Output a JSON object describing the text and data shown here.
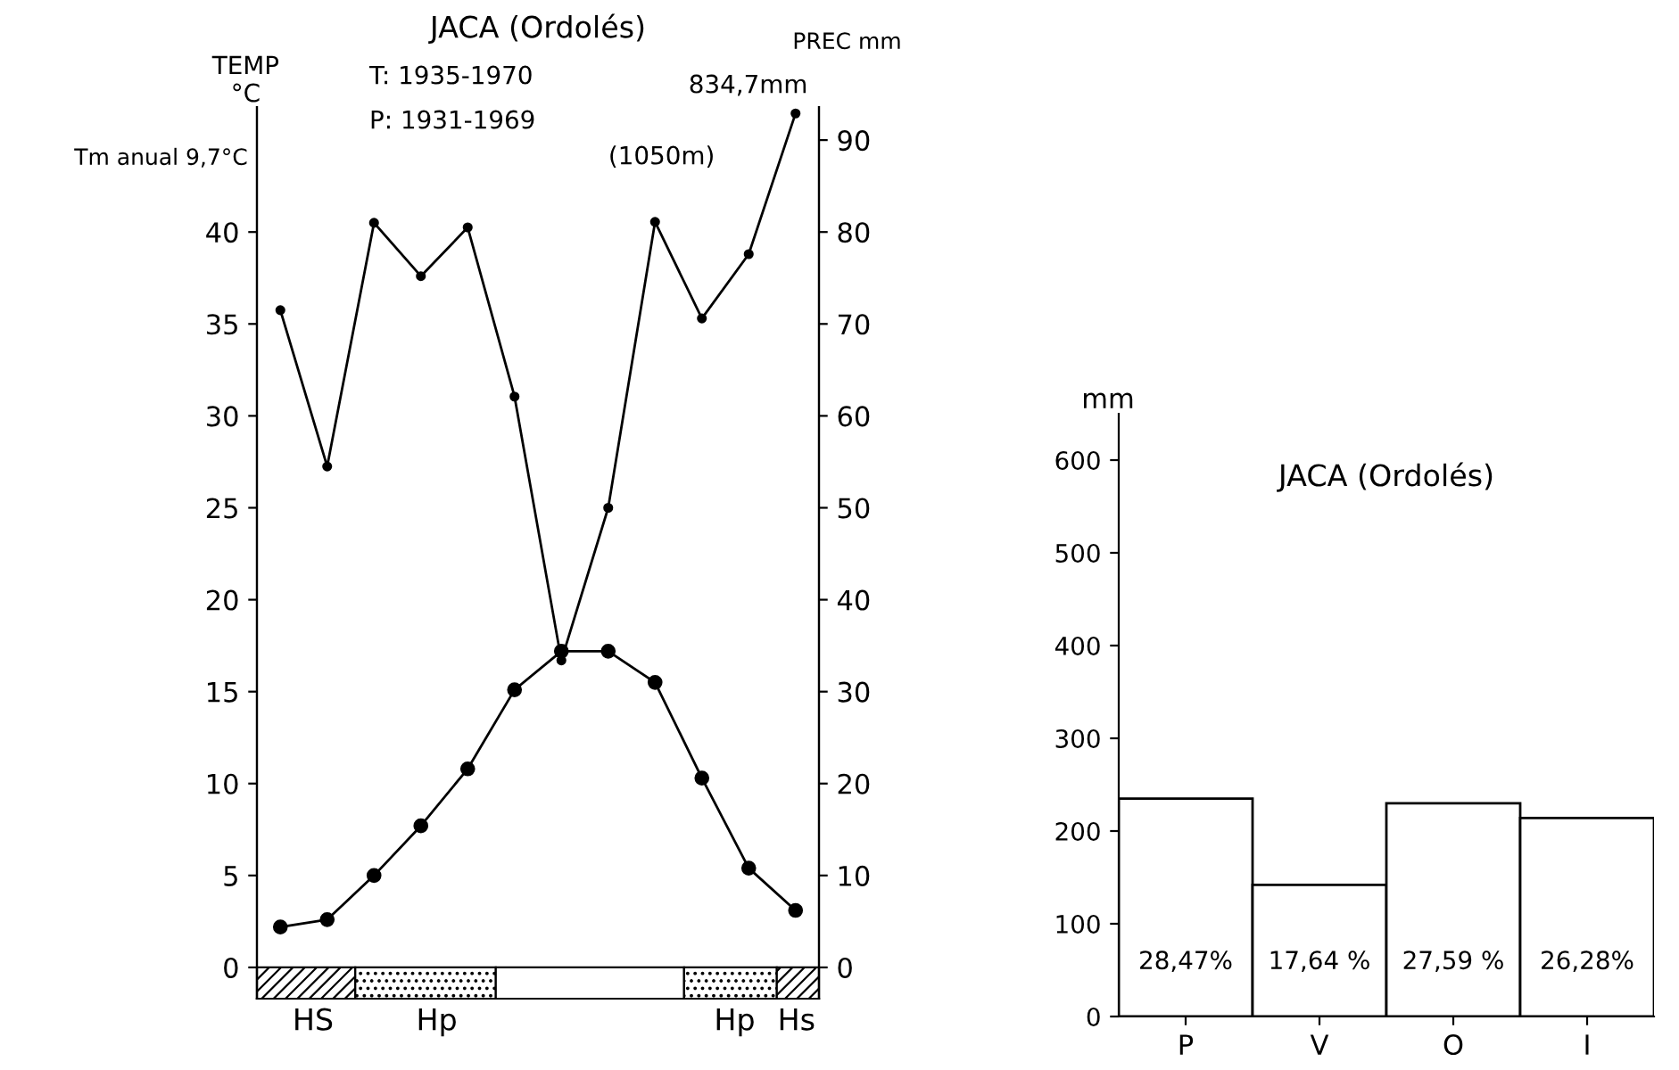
{
  "chart_data": [
    {
      "type": "line",
      "title": "JACA (Ordolés)",
      "ylabel": "TEMP\n°C",
      "y2label": "PREC mm",
      "categories": [
        null,
        null,
        null,
        null,
        null,
        null,
        null,
        null,
        null,
        null,
        null,
        null
      ],
      "series": [
        {
          "color": "#000000",
          "values": [
            2.2,
            2.6,
            5.0,
            7.7,
            10.8,
            15.1,
            17.2,
            17.2,
            15.5,
            10.3,
            5.4,
            3.1
          ]
        },
        {
          "color": "#000000",
          "axis": "y2",
          "values": [
            71.5,
            54.5,
            81.0,
            75.2,
            80.5,
            62.1,
            33.4,
            50.0,
            81.1,
            70.6,
            77.6,
            92.9
          ]
        }
      ],
      "ylim": [
        -1.7,
        46.8
      ],
      "yticks": [
        0,
        5,
        10,
        15,
        20,
        25,
        30,
        35,
        40
      ],
      "y2lim": [
        -3.4,
        93.6
      ],
      "y2ticks": [
        0,
        10,
        20,
        30,
        40,
        50,
        60,
        70,
        80,
        90
      ],
      "annotations": [
        "Tm anual 9,7°C",
        "T: 1935-1970",
        "P: 1931-1969",
        "(1050m)",
        "834,7mm",
        "HS",
        "Hp",
        "Hp",
        "Hs"
      ],
      "marker": "circle",
      "line_style": "solid",
      "grid": false,
      "legend": false
    },
    {
      "type": "bar",
      "title": "JACA (Ordolés)",
      "ylabel": "mm",
      "categories": [
        "P",
        "V",
        "O",
        "I"
      ],
      "values": [
        235,
        142,
        230,
        214
      ],
      "color": "#ffffff",
      "annotations": [
        "28,47%",
        "17,64 %",
        "27,59 %",
        "26,28%"
      ],
      "ylim": [
        0,
        650
      ],
      "yticks": [
        0,
        100,
        200,
        300,
        400,
        500,
        600
      ],
      "grid": false,
      "legend": false
    }
  ]
}
